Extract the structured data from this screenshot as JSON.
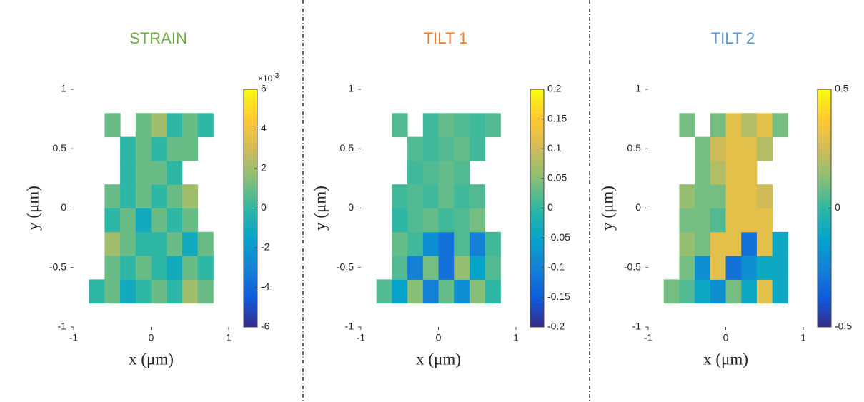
{
  "chart_data": [
    {
      "type": "heatmap",
      "title": "STRAIN",
      "title_color": "#70ad47",
      "xlabel": "x (μm)",
      "ylabel": "y (μm)",
      "x": [
        -0.8,
        -0.6,
        -0.4,
        -0.2,
        0,
        0.2,
        0.4,
        0.6,
        0.8
      ],
      "y": [
        -0.8,
        -0.6,
        -0.4,
        -0.2,
        0,
        0.2,
        0.4,
        0.6,
        0.8
      ],
      "z": [
        [
          0,
          1,
          -1,
          0,
          1,
          0,
          2,
          1
        ],
        [
          null,
          1,
          0,
          1,
          0,
          -1,
          1,
          0
        ],
        [
          null,
          2,
          1,
          0,
          0,
          1,
          -1,
          1
        ],
        [
          null,
          0,
          1,
          -1,
          1,
          0,
          1,
          null
        ],
        [
          null,
          1,
          0,
          1,
          0,
          1,
          2,
          null
        ],
        [
          null,
          null,
          0,
          1,
          1,
          0,
          null,
          null
        ],
        [
          null,
          null,
          0,
          1,
          0,
          1,
          1,
          null
        ],
        [
          null,
          1,
          null,
          1,
          2,
          0,
          1,
          0
        ]
      ],
      "xlim": [
        -1,
        1
      ],
      "ylim": [
        -1,
        1
      ],
      "xticks": [
        -1,
        0,
        1
      ],
      "yticks": [
        -1,
        -0.5,
        0,
        0.5,
        1
      ],
      "colormap": "parula",
      "zlim": [
        -6,
        6
      ],
      "zticks": [
        -6,
        -4,
        -2,
        0,
        2,
        4,
        6
      ],
      "colorbar_multiplier": {
        "base": "×10",
        "exponent": "-3"
      }
    },
    {
      "type": "heatmap",
      "title": "TILT 1",
      "title_color": "#ed7d31",
      "xlabel": "x (μm)",
      "ylabel": "y (μm)",
      "x": [
        -0.8,
        -0.6,
        -0.4,
        -0.2,
        0,
        0.2,
        0.4,
        0.6,
        0.8
      ],
      "y": [
        -0.8,
        -0.6,
        -0.4,
        -0.2,
        0,
        0.2,
        0.4,
        0.6,
        0.8
      ],
      "z": [
        [
          0.02,
          -0.05,
          0.05,
          -0.1,
          0.03,
          -0.08,
          0.05,
          0
        ],
        [
          null,
          0.02,
          -0.1,
          0.04,
          -0.12,
          0.06,
          -0.05,
          0.02
        ],
        [
          null,
          0.03,
          0.01,
          -0.08,
          -0.12,
          0.02,
          -0.1,
          0.01
        ],
        [
          null,
          0,
          0.02,
          0.03,
          0.01,
          0.02,
          0.04,
          null
        ],
        [
          null,
          0.01,
          0.02,
          0.01,
          0.03,
          0.01,
          0.02,
          null
        ],
        [
          null,
          null,
          0.01,
          0.02,
          0.03,
          0.02,
          null,
          null
        ],
        [
          null,
          null,
          0.02,
          0.01,
          0.02,
          0.03,
          0.01,
          null
        ],
        [
          null,
          0.02,
          null,
          0.01,
          0.03,
          0.02,
          0.01,
          0.02
        ]
      ],
      "xlim": [
        -1,
        1
      ],
      "ylim": [
        -1,
        1
      ],
      "xticks": [
        -1,
        0,
        1
      ],
      "yticks": [
        -1,
        -0.5,
        0,
        0.5,
        1
      ],
      "colormap": "parula",
      "zlim": [
        -0.2,
        0.2
      ],
      "zticks": [
        -0.2,
        -0.15,
        -0.1,
        -0.05,
        0,
        0.05,
        0.1,
        0.15,
        0.2
      ]
    },
    {
      "type": "heatmap",
      "title": "TILT 2",
      "title_color": "#5b9bd5",
      "xlabel": "x (μm)",
      "ylabel": "y (μm)",
      "x": [
        -0.8,
        -0.6,
        -0.4,
        -0.2,
        0,
        0.2,
        0.4,
        0.6,
        0.8
      ],
      "y": [
        -0.8,
        -0.6,
        -0.4,
        -0.2,
        0,
        0.2,
        0.4,
        0.6,
        0.8
      ],
      "z": [
        [
          0.1,
          0.05,
          -0.1,
          -0.2,
          0.1,
          -0.1,
          0.3,
          -0.1
        ],
        [
          null,
          0.1,
          -0.2,
          0.3,
          -0.3,
          -0.2,
          -0.1,
          -0.1
        ],
        [
          null,
          0.15,
          0.1,
          0.3,
          0.3,
          -0.3,
          0.3,
          -0.1
        ],
        [
          null,
          0.1,
          0.1,
          0.05,
          0.3,
          0.3,
          0.3,
          null
        ],
        [
          null,
          0.15,
          0.1,
          0.1,
          0.3,
          0.3,
          0.25,
          null
        ],
        [
          null,
          null,
          0.1,
          0.2,
          0.3,
          0.3,
          null,
          null
        ],
        [
          null,
          null,
          0.1,
          0.25,
          0.3,
          0.3,
          0.2,
          null
        ],
        [
          null,
          0.1,
          null,
          0.1,
          0.3,
          0.2,
          0.3,
          0.1
        ]
      ],
      "xlim": [
        -1,
        1
      ],
      "ylim": [
        -1,
        1
      ],
      "xticks": [
        -1,
        0,
        1
      ],
      "yticks": [
        -1,
        -0.5,
        0,
        0.5,
        1
      ],
      "colormap": "parula",
      "zlim": [
        -0.5,
        0.5
      ],
      "zticks": [
        -0.5,
        0,
        0.5
      ]
    }
  ]
}
